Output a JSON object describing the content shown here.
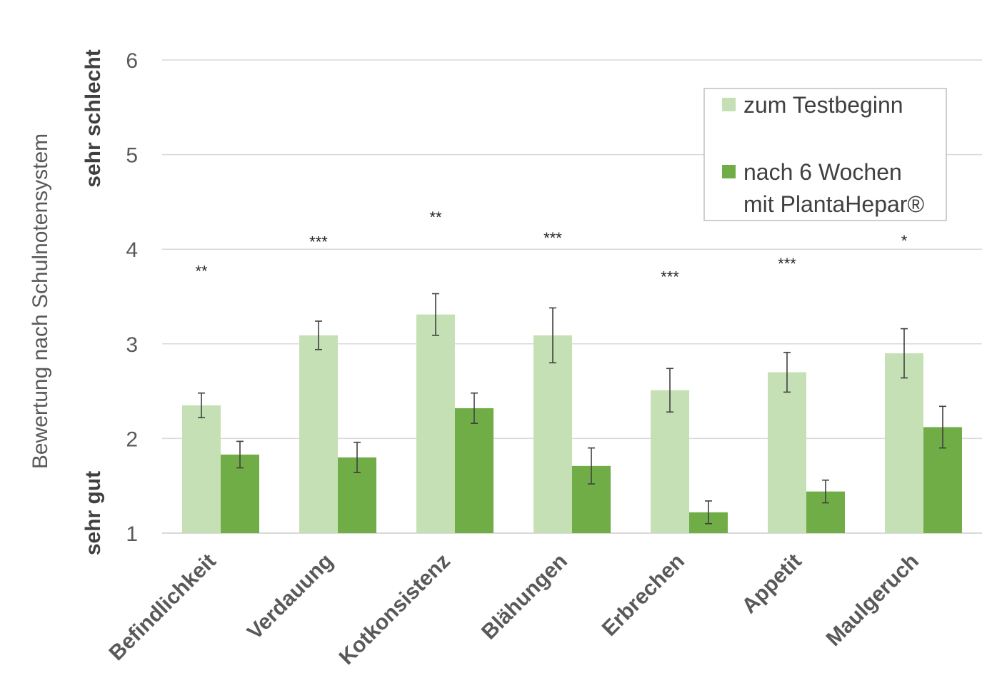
{
  "chart_data": {
    "type": "bar",
    "categories": [
      "Befindlichkeit",
      "Verdauung",
      "Kotkonsistenz",
      "Blähungen",
      "Erbrechen",
      "Appetit",
      "Maulgeruch"
    ],
    "series": [
      {
        "name": "zum Testbeginn",
        "color": "#c5e0b4",
        "values": [
          2.35,
          3.09,
          3.31,
          3.09,
          2.51,
          2.7,
          2.9
        ],
        "error": [
          0.13,
          0.15,
          0.22,
          0.29,
          0.23,
          0.21,
          0.26
        ]
      },
      {
        "name": "nach 6 Wochen mit PlantaHepar®",
        "name_lines": [
          "nach 6 Wochen",
          "mit PlantaHepar®"
        ],
        "color": "#70ad47",
        "values": [
          1.83,
          1.8,
          2.32,
          1.71,
          1.22,
          1.44,
          2.12
        ],
        "error": [
          0.14,
          0.16,
          0.16,
          0.19,
          0.12,
          0.12,
          0.22
        ]
      }
    ],
    "significance": [
      "**",
      "***",
      "**",
      "***",
      "***",
      "***",
      "*"
    ],
    "significance_y": [
      3.71,
      4.02,
      4.28,
      4.06,
      3.65,
      3.79,
      4.03
    ],
    "ylabel": "Bewertung nach Schulnotensystem",
    "y_annotation_top": "sehr schlecht",
    "y_annotation_bottom": "sehr gut",
    "ylim": [
      1,
      6
    ],
    "yticks": [
      1,
      2,
      3,
      4,
      5,
      6
    ],
    "grid": true,
    "legend_position": "top-right",
    "colors": {
      "gridline": "#d9d9d9",
      "axis_text": "#595959",
      "error_bar": "#404040",
      "legend_border": "#bfbfbf"
    }
  }
}
